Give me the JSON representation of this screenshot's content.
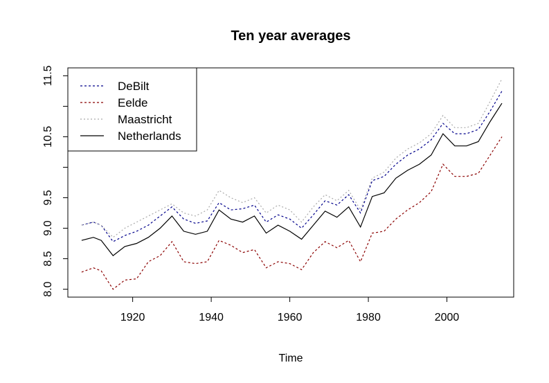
{
  "chart_data": {
    "type": "line",
    "title": "Ten year averages",
    "xlabel": "Time",
    "ylabel": "",
    "xlim": [
      1903.5,
      2017
    ],
    "ylim": [
      7.87,
      11.63
    ],
    "x_ticks": [
      1920,
      1940,
      1960,
      1980,
      2000
    ],
    "y_ticks": [
      8.0,
      8.5,
      9.0,
      9.5,
      10.0,
      10.5,
      11.0,
      11.5
    ],
    "y_tick_labels": [
      "8.0",
      "8.5",
      "9.0",
      "9.5",
      "",
      "10.5",
      "",
      "11.5"
    ],
    "legend_position": "top-left",
    "grid": false,
    "x": [
      1907,
      1910,
      1912,
      1915,
      1918,
      1921,
      1924,
      1927,
      1930,
      1933,
      1936,
      1939,
      1942,
      1945,
      1948,
      1951,
      1954,
      1957,
      1960,
      1963,
      1966,
      1969,
      1972,
      1975,
      1978,
      1981,
      1984,
      1987,
      1990,
      1993,
      1996,
      1999,
      2002,
      2005,
      2008,
      2011,
      2014
    ],
    "series": [
      {
        "name": "DeBilt",
        "color": "#00008b",
        "dash": "3,3",
        "values": [
          9.05,
          9.1,
          9.05,
          8.78,
          8.88,
          8.95,
          9.05,
          9.2,
          9.35,
          9.15,
          9.08,
          9.12,
          9.42,
          9.3,
          9.32,
          9.38,
          9.1,
          9.22,
          9.15,
          9.0,
          9.22,
          9.45,
          9.38,
          9.55,
          9.25,
          9.78,
          9.85,
          10.05,
          10.2,
          10.3,
          10.45,
          10.72,
          10.55,
          10.55,
          10.62,
          10.92,
          11.25
        ]
      },
      {
        "name": "Eelde",
        "color": "#8b0000",
        "dash": "3,3",
        "values": [
          8.28,
          8.35,
          8.3,
          8.0,
          8.15,
          8.17,
          8.45,
          8.55,
          8.78,
          8.45,
          8.42,
          8.45,
          8.8,
          8.72,
          8.6,
          8.65,
          8.35,
          8.45,
          8.42,
          8.32,
          8.6,
          8.78,
          8.68,
          8.8,
          8.45,
          8.92,
          8.95,
          9.15,
          9.3,
          9.42,
          9.6,
          10.05,
          9.85,
          9.85,
          9.9,
          10.2,
          10.5
        ]
      },
      {
        "name": "Maastricht",
        "color": "#a9a9a9",
        "dash": "2,3",
        "values": [
          9.05,
          9.1,
          9.05,
          8.85,
          9.0,
          9.1,
          9.2,
          9.3,
          9.4,
          9.25,
          9.2,
          9.3,
          9.62,
          9.5,
          9.42,
          9.5,
          9.25,
          9.38,
          9.3,
          9.1,
          9.35,
          9.55,
          9.45,
          9.62,
          9.3,
          9.82,
          9.92,
          10.15,
          10.3,
          10.4,
          10.55,
          10.85,
          10.65,
          10.65,
          10.72,
          11.08,
          11.45
        ]
      },
      {
        "name": "Netherlands",
        "color": "#000000",
        "dash": "",
        "values": [
          8.8,
          8.85,
          8.8,
          8.55,
          8.7,
          8.75,
          8.85,
          9.0,
          9.2,
          8.95,
          8.9,
          8.95,
          9.3,
          9.15,
          9.1,
          9.2,
          8.92,
          9.05,
          8.95,
          8.82,
          9.05,
          9.28,
          9.18,
          9.35,
          9.02,
          9.52,
          9.58,
          9.82,
          9.95,
          10.05,
          10.2,
          10.55,
          10.35,
          10.35,
          10.42,
          10.75,
          11.05
        ]
      }
    ]
  }
}
